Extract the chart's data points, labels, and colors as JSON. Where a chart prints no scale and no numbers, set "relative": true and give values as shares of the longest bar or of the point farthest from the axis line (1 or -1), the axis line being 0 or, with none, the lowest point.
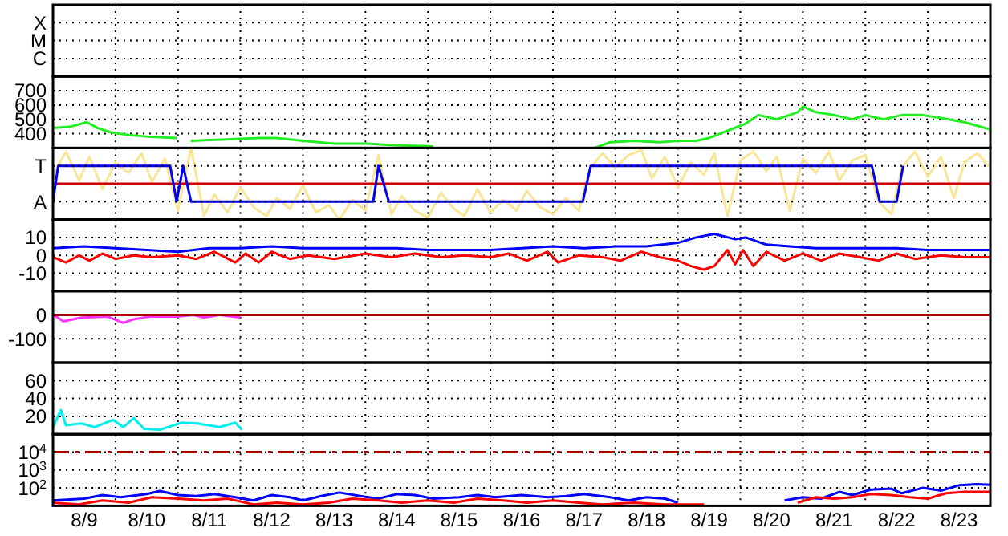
{
  "chart_data": [
    {
      "type": "scatter",
      "orientation": "horizontal",
      "categories": [
        "X",
        "M",
        "C"
      ],
      "xlim": [
        "--08-09",
        "--08-24"
      ],
      "xticks": [
        {
          "value": "--08-10",
          "label": null
        },
        {
          "value": "--08-11",
          "label": null
        },
        {
          "value": "--08-12",
          "label": null
        },
        {
          "value": "--08-13",
          "label": null
        },
        {
          "value": "--08-14",
          "label": null
        },
        {
          "value": "--08-15",
          "label": null
        },
        {
          "value": "--08-16",
          "label": null
        },
        {
          "value": "--08-17",
          "label": null
        },
        {
          "value": "--08-18",
          "label": null
        },
        {
          "value": "--08-19",
          "label": null
        },
        {
          "value": "--08-20",
          "label": null
        },
        {
          "value": "--08-21",
          "label": null
        },
        {
          "value": "--08-22",
          "label": null
        },
        {
          "value": "--08-23",
          "label": null
        }
      ],
      "grid": true,
      "tick_labels": "y"
    },
    {
      "type": "line",
      "xlim": [
        "--08-09",
        "--08-24"
      ],
      "xticks": [
        {
          "value": "--08-10",
          "label": null
        },
        {
          "value": "--08-11",
          "label": null
        },
        {
          "value": "--08-12",
          "label": null
        },
        {
          "value": "--08-13",
          "label": null
        },
        {
          "value": "--08-14",
          "label": null
        },
        {
          "value": "--08-15",
          "label": null
        },
        {
          "value": "--08-16",
          "label": null
        },
        {
          "value": "--08-17",
          "label": null
        },
        {
          "value": "--08-18",
          "label": null
        },
        {
          "value": "--08-19",
          "label": null
        },
        {
          "value": "--08-20",
          "label": null
        },
        {
          "value": "--08-21",
          "label": null
        },
        {
          "value": "--08-22",
          "label": null
        },
        {
          "value": "--08-23",
          "label": null
        }
      ],
      "ylim": [
        300,
        800
      ],
      "yticks": [
        400,
        500,
        600,
        700
      ],
      "grid": true,
      "tick_labels": "y",
      "marker": "none",
      "series": [
        {
          "color": "#22ee22",
          "x": [
            "--08-09T00:00",
            "--08-09T07:00",
            "--08-09T13:00",
            "--08-09T17:00",
            "--08-09T22:00",
            "--08-10T05:00",
            "--08-10T12:00",
            "--08-10T23:30",
            "--08-11T02:00",
            "--08-11T05:00",
            "--08-11T19:00",
            "--08-12T07:00",
            "--08-12T14:00",
            "--08-13T00:00",
            "--08-13T12:00",
            "--08-14T00:00",
            "--08-14T10:00",
            "--08-15T02:00",
            "--08-16T00:00",
            "--08-17T16:00",
            "--08-17T22:00",
            "--08-18T07:00",
            "--08-18T17:00",
            "--08-19T00:00",
            "--08-19T07:00",
            "--08-19T12:00",
            "--08-19T19:00",
            "--08-20T02:00",
            "--08-20T07:00",
            "--08-20T14:00",
            "--08-20T22:00",
            "--08-21T00:00",
            "--08-21T05:00",
            "--08-21T12:00",
            "--08-21T19:00",
            "--08-22T00:00",
            "--08-22T07:00",
            "--08-22T14:00",
            "--08-22T22:00",
            "--08-23T05:00",
            "--08-23T14:00",
            "--08-24T00:00"
          ],
          "values": [
            440,
            450,
            480,
            440,
            410,
            390,
            380,
            370,
            null,
            350,
            360,
            370,
            370,
            350,
            330,
            330,
            320,
            310,
            null,
            300,
            340,
            350,
            340,
            350,
            350,
            370,
            420,
            470,
            530,
            500,
            550,
            590,
            550,
            530,
            500,
            530,
            500,
            530,
            530,
            510,
            480,
            430
          ]
        }
      ]
    },
    {
      "type": "line",
      "relative": true,
      "xlim": [
        "--08-09",
        "--08-24"
      ],
      "xticks": [
        {
          "value": "--08-10",
          "label": null
        },
        {
          "value": "--08-11",
          "label": null
        },
        {
          "value": "--08-12",
          "label": null
        },
        {
          "value": "--08-13",
          "label": null
        },
        {
          "value": "--08-14",
          "label": null
        },
        {
          "value": "--08-15",
          "label": null
        },
        {
          "value": "--08-16",
          "label": null
        },
        {
          "value": "--08-17",
          "label": null
        },
        {
          "value": "--08-18",
          "label": null
        },
        {
          "value": "--08-19",
          "label": null
        },
        {
          "value": "--08-20",
          "label": null
        },
        {
          "value": "--08-21",
          "label": null
        },
        {
          "value": "--08-22",
          "label": null
        },
        {
          "value": "--08-23",
          "label": null
        }
      ],
      "annotations": [
        "T",
        "A"
      ],
      "grid": true,
      "tick_labels": "y",
      "marker": "none",
      "ref_lines": [
        {
          "axis": "y",
          "value": 0,
          "color": "#cc0000"
        }
      ],
      "series": [
        {
          "color": "#f8e596",
          "x": [
            "--08-09T00:00",
            "--08-09T05:00",
            "--08-09T10:00",
            "--08-09T14:00",
            "--08-09T19:00",
            "--08-10T00:00",
            "--08-10T05:00",
            "--08-10T10:00",
            "--08-10T14:00",
            "--08-10T19:00",
            "--08-11T00:00",
            "--08-11T05:00",
            "--08-11T10:00",
            "--08-11T14:00",
            "--08-11T19:00",
            "--08-12T00:00",
            "--08-12T05:00",
            "--08-12T10:00",
            "--08-12T14:00",
            "--08-12T19:00",
            "--08-13T00:00",
            "--08-13T05:00",
            "--08-13T10:00",
            "--08-13T14:00",
            "--08-13T19:00",
            "--08-14T00:00",
            "--08-14T05:00",
            "--08-14T10:00",
            "--08-14T14:00",
            "--08-14T19:00",
            "--08-15T00:00",
            "--08-15T05:00",
            "--08-15T10:00",
            "--08-15T14:00",
            "--08-15T19:00",
            "--08-16T00:00",
            "--08-16T05:00",
            "--08-16T10:00",
            "--08-16T14:00",
            "--08-16T19:00",
            "--08-17T00:00",
            "--08-17T05:00",
            "--08-17T10:00",
            "--08-17T14:00",
            "--08-17T19:00",
            "--08-18T00:00",
            "--08-18T05:00",
            "--08-18T10:00",
            "--08-18T14:00",
            "--08-18T19:00",
            "--08-19T00:00",
            "--08-19T05:00",
            "--08-19T10:00",
            "--08-19T14:00",
            "--08-19T19:00",
            "--08-20T00:00",
            "--08-20T05:00",
            "--08-20T10:00",
            "--08-20T14:00",
            "--08-20T19:00",
            "--08-21T00:00",
            "--08-21T05:00",
            "--08-21T10:00",
            "--08-21T14:00",
            "--08-21T19:00",
            "--08-22T00:00",
            "--08-22T05:00",
            "--08-22T10:00",
            "--08-22T14:00",
            "--08-22T19:00",
            "--08-23T00:00",
            "--08-23T05:00",
            "--08-23T10:00",
            "--08-23T14:00",
            "--08-23T19:00",
            "--08-24T00:00"
          ],
          "values": [
            0.25,
            0.9,
            0.1,
            0.75,
            -0.15,
            0.6,
            0.3,
            0.85,
            0.05,
            0.7,
            -0.75,
            1,
            -0.9,
            -0.3,
            -0.8,
            -0.1,
            -0.65,
            -0.9,
            -0.4,
            -0.7,
            -0.05,
            -0.8,
            -0.6,
            -1,
            -0.45,
            -0.75,
            0.8,
            -0.85,
            -0.35,
            -0.75,
            -0.95,
            -0.25,
            -0.7,
            -0.9,
            -0.15,
            -0.8,
            -0.45,
            -0.75,
            -0.2,
            -0.65,
            -0.85,
            -0.4,
            -0.75,
            0.4,
            0.85,
            0.45,
            0.8,
            0.95,
            0.15,
            0.75,
            -0.1,
            0.6,
            0.25,
            0.85,
            -0.9,
            0.65,
            0.9,
            0.35,
            0.75,
            -0.75,
            0.7,
            0.3,
            0.9,
            0.1,
            0.65,
            0.8,
            -0.5,
            -0.85,
            0.45,
            0.9,
            0.2,
            0.75,
            -0.4,
            0.6,
            0.85,
            0.45
          ]
        },
        {
          "color": "#0000ff",
          "x": [
            "--08-09T00:00",
            "--08-09T02:00",
            "--08-10T21:00",
            "--08-10T23:30",
            "--08-11T02:00",
            "--08-11T05:00",
            "--08-14T03:00",
            "--08-14T05:00",
            "--08-14T09:00",
            "--08-17T11:30",
            "--08-17T14:30",
            "--08-22T02:30",
            "--08-22T05:30",
            "--08-22T12:00",
            "--08-22T14:30"
          ],
          "values": [
            -0.5,
            0.5,
            0.5,
            -0.5,
            0.5,
            -0.5,
            -0.5,
            0.5,
            -0.5,
            -0.5,
            0.5,
            0.5,
            -0.5,
            -0.5,
            0.5
          ]
        }
      ]
    },
    {
      "type": "line",
      "xlim": [
        "--08-09",
        "--08-24"
      ],
      "xticks": [
        {
          "value": "--08-10",
          "label": null
        },
        {
          "value": "--08-11",
          "label": null
        },
        {
          "value": "--08-12",
          "label": null
        },
        {
          "value": "--08-13",
          "label": null
        },
        {
          "value": "--08-14",
          "label": null
        },
        {
          "value": "--08-15",
          "label": null
        },
        {
          "value": "--08-16",
          "label": null
        },
        {
          "value": "--08-17",
          "label": null
        },
        {
          "value": "--08-18",
          "label": null
        },
        {
          "value": "--08-19",
          "label": null
        },
        {
          "value": "--08-20",
          "label": null
        },
        {
          "value": "--08-21",
          "label": null
        },
        {
          "value": "--08-22",
          "label": null
        },
        {
          "value": "--08-23",
          "label": null
        }
      ],
      "ylim": [
        -20,
        20
      ],
      "yticks": [
        -10,
        0,
        10
      ],
      "grid": true,
      "tick_labels": "y",
      "marker": "none",
      "series": [
        {
          "color": "#0000ff",
          "x": [
            "--08-09T00:00",
            "--08-09T12:00",
            "--08-10T00:00",
            "--08-10T12:00",
            "--08-11T00:00",
            "--08-11T12:00",
            "--08-12T00:00",
            "--08-12T12:00",
            "--08-13T00:00",
            "--08-13T12:00",
            "--08-14T00:00",
            "--08-14T12:00",
            "--08-15T00:00",
            "--08-15T12:00",
            "--08-16T00:00",
            "--08-16T12:00",
            "--08-17T00:00",
            "--08-17T12:00",
            "--08-18T00:00",
            "--08-18T12:00",
            "--08-19T00:00",
            "--08-19T07:00",
            "--08-19T14:00",
            "--08-19T22:00",
            "--08-20T02:00",
            "--08-20T10:00",
            "--08-20T19:00",
            "--08-21T05:00",
            "--08-21T14:00",
            "--08-22T00:00",
            "--08-22T12:00",
            "--08-23T00:00",
            "--08-23T12:00",
            "--08-24T00:00"
          ],
          "values": [
            4,
            5,
            4,
            3,
            2,
            4,
            4,
            5,
            4,
            4,
            4,
            4,
            3,
            3,
            3,
            4,
            5,
            4,
            5,
            5,
            7,
            10,
            12,
            9,
            10,
            6,
            5,
            4,
            4,
            4,
            4,
            3,
            3,
            3
          ]
        },
        {
          "color": "#ff0000",
          "x": [
            "--08-09T00:00",
            "--08-09T05:00",
            "--08-09T10:00",
            "--08-09T14:00",
            "--08-09T19:00",
            "--08-10T00:00",
            "--08-10T07:00",
            "--08-10T14:00",
            "--08-11T00:00",
            "--08-11T07:00",
            "--08-11T14:00",
            "--08-11T22:00",
            "--08-12T02:00",
            "--08-12T07:00",
            "--08-12T12:00",
            "--08-12T19:00",
            "--08-13T02:00",
            "--08-13T12:00",
            "--08-14T00:00",
            "--08-14T10:00",
            "--08-14T19:00",
            "--08-15T05:00",
            "--08-15T14:00",
            "--08-16T00:00",
            "--08-16T07:00",
            "--08-16T14:00",
            "--08-16T22:00",
            "--08-17T02:00",
            "--08-17T10:00",
            "--08-17T19:00",
            "--08-18T02:00",
            "--08-18T10:00",
            "--08-18T17:00",
            "--08-19T00:00",
            "--08-19T05:00",
            "--08-19T10:00",
            "--08-19T14:00",
            "--08-19T19:00",
            "--08-19T22:00",
            "--08-20T01:00",
            "--08-20T05:00",
            "--08-20T10:00",
            "--08-20T17:00",
            "--08-21T00:00",
            "--08-21T07:00",
            "--08-21T14:00",
            "--08-21T22:00",
            "--08-22T05:00",
            "--08-22T12:00",
            "--08-22T19:00",
            "--08-23T05:00",
            "--08-23T14:00",
            "--08-24T00:00"
          ],
          "values": [
            -1,
            -4,
            0,
            -3,
            1,
            -2,
            0,
            -1,
            0,
            -2,
            2,
            -4,
            1,
            -4,
            2,
            -2,
            0,
            -2,
            1,
            -1,
            1,
            -1,
            0,
            -1,
            1,
            -3,
            2,
            -4,
            0,
            -1,
            -3,
            2,
            -1,
            -3,
            -6,
            -8,
            -6,
            3,
            -5,
            3,
            -6,
            2,
            -3,
            1,
            -3,
            1,
            -1,
            -3,
            1,
            -2,
            0,
            -1,
            -1
          ]
        }
      ]
    },
    {
      "type": "line",
      "xlim": [
        "--08-09",
        "--08-24"
      ],
      "xticks": [
        {
          "value": "--08-10",
          "label": null
        },
        {
          "value": "--08-11",
          "label": null
        },
        {
          "value": "--08-12",
          "label": null
        },
        {
          "value": "--08-13",
          "label": null
        },
        {
          "value": "--08-14",
          "label": null
        },
        {
          "value": "--08-15",
          "label": null
        },
        {
          "value": "--08-16",
          "label": null
        },
        {
          "value": "--08-17",
          "label": null
        },
        {
          "value": "--08-18",
          "label": null
        },
        {
          "value": "--08-19",
          "label": null
        },
        {
          "value": "--08-20",
          "label": null
        },
        {
          "value": "--08-21",
          "label": null
        },
        {
          "value": "--08-22",
          "label": null
        },
        {
          "value": "--08-23",
          "label": null
        }
      ],
      "ylim": [
        -200,
        100
      ],
      "yticks": [
        -100,
        0
      ],
      "grid": true,
      "tick_labels": "y",
      "marker": "none",
      "ref_lines": [
        {
          "axis": "y",
          "value": 0,
          "color": "#aa0000"
        }
      ],
      "series": [
        {
          "color": "#ff33ff",
          "x": [
            "--08-09T00:00",
            "--08-09T04:00",
            "--08-09T11:00",
            "--08-09T21:00",
            "--08-10T03:00",
            "--08-10T07:00",
            "--08-10T13:00",
            "--08-10T23:30",
            "--08-11T06:00",
            "--08-11T10:00",
            "--08-11T16:00",
            "--08-12T00:00"
          ],
          "values": [
            3,
            -27,
            -11,
            -7,
            -33,
            -18,
            -7,
            -7,
            0,
            -11,
            0,
            -11
          ]
        }
      ]
    },
    {
      "type": "line",
      "xlim": [
        "--08-09",
        "--08-24"
      ],
      "xticks": [
        {
          "value": "--08-10",
          "label": null
        },
        {
          "value": "--08-11",
          "label": null
        },
        {
          "value": "--08-12",
          "label": null
        },
        {
          "value": "--08-13",
          "label": null
        },
        {
          "value": "--08-14",
          "label": null
        },
        {
          "value": "--08-15",
          "label": null
        },
        {
          "value": "--08-16",
          "label": null
        },
        {
          "value": "--08-17",
          "label": null
        },
        {
          "value": "--08-18",
          "label": null
        },
        {
          "value": "--08-19",
          "label": null
        },
        {
          "value": "--08-20",
          "label": null
        },
        {
          "value": "--08-21",
          "label": null
        },
        {
          "value": "--08-22",
          "label": null
        },
        {
          "value": "--08-23",
          "label": null
        }
      ],
      "ylim": [
        0,
        80
      ],
      "yticks": [
        20,
        40,
        60
      ],
      "grid": true,
      "tick_labels": "y",
      "marker": "none",
      "series": [
        {
          "color": "#00eeee",
          "x": [
            "--08-09T00:00",
            "--08-09T03:00",
            "--08-09T05:00",
            "--08-09T11:00",
            "--08-09T16:00",
            "--08-09T23:00",
            "--08-10T03:00",
            "--08-10T07:00",
            "--08-10T11:00",
            "--08-10T17:00",
            "--08-11T01:30",
            "--08-11T07:30",
            "--08-11T16:00",
            "--08-11T22:00",
            "--08-12T00:30"
          ],
          "values": [
            8,
            27,
            10,
            12,
            8,
            16,
            8,
            18,
            6,
            5,
            13,
            12,
            8,
            13,
            5
          ]
        }
      ]
    },
    {
      "type": "line",
      "log": true,
      "xlim": [
        "--08-09",
        "--08-24"
      ],
      "xticks": [
        {
          "value": "--08-09T12:00",
          "label": "8/9"
        },
        {
          "value": "--08-10",
          "label": null
        },
        {
          "value": "--08-10T12:00",
          "label": "8/10"
        },
        {
          "value": "--08-11",
          "label": null
        },
        {
          "value": "--08-11T12:00",
          "label": "8/11"
        },
        {
          "value": "--08-12",
          "label": null
        },
        {
          "value": "--08-12T12:00",
          "label": "8/12"
        },
        {
          "value": "--08-13",
          "label": null
        },
        {
          "value": "--08-13T12:00",
          "label": "8/13"
        },
        {
          "value": "--08-14",
          "label": null
        },
        {
          "value": "--08-14T12:00",
          "label": "8/14"
        },
        {
          "value": "--08-15",
          "label": null
        },
        {
          "value": "--08-15T12:00",
          "label": "8/15"
        },
        {
          "value": "--08-16",
          "label": null
        },
        {
          "value": "--08-16T12:00",
          "label": "8/16"
        },
        {
          "value": "--08-17",
          "label": null
        },
        {
          "value": "--08-17T12:00",
          "label": "8/17"
        },
        {
          "value": "--08-18",
          "label": null
        },
        {
          "value": "--08-18T12:00",
          "label": "8/18"
        },
        {
          "value": "--08-19",
          "label": null
        },
        {
          "value": "--08-19T12:00",
          "label": "8/19"
        },
        {
          "value": "--08-20",
          "label": null
        },
        {
          "value": "--08-20T12:00",
          "label": "8/20"
        },
        {
          "value": "--08-21",
          "label": null
        },
        {
          "value": "--08-21T12:00",
          "label": "8/21"
        },
        {
          "value": "--08-22",
          "label": null
        },
        {
          "value": "--08-22T12:00",
          "label": "8/22"
        },
        {
          "value": "--08-23",
          "label": null
        },
        {
          "value": "--08-23T12:00",
          "label": "8/23"
        }
      ],
      "ylim": [
        10,
        100000
      ],
      "yticks": [
        {
          "value": 100,
          "label": "10$^{2}$"
        },
        {
          "value": 1000,
          "label": "10$^{3}$"
        },
        {
          "value": 10000,
          "label": "10$^{4}$"
        }
      ],
      "grid": true,
      "marker": "none",
      "ref_lines": [
        {
          "axis": "y",
          "value": 10000,
          "color": "#aa0000",
          "line_style": "dashed"
        }
      ],
      "series": [
        {
          "color": "#0000ff",
          "x": [
            "--08-09T00:00",
            "--08-09T12:00",
            "--08-09T19:00",
            "--08-10T02:00",
            "--08-10T12:00",
            "--08-10T17:00",
            "--08-11T00:00",
            "--08-11T07:00",
            "--08-11T14:00",
            "--08-11T22:00",
            "--08-12T05:00",
            "--08-12T12:00",
            "--08-12T19:00",
            "--08-13T00:00",
            "--08-13T07:00",
            "--08-13T14:00",
            "--08-13T22:00",
            "--08-14T05:00",
            "--08-14T12:00",
            "--08-14T19:00",
            "--08-15T02:00",
            "--08-15T12:00",
            "--08-15T19:00",
            "--08-16T02:00",
            "--08-16T12:00",
            "--08-16T22:00",
            "--08-17T05:00",
            "--08-17T12:00",
            "--08-17T22:00",
            "--08-18T05:00",
            "--08-18T12:00",
            "--08-18T19:00",
            "--08-19T00:00",
            "--08-19T19:00",
            "--08-20T17:00",
            "--08-21T00:00",
            "--08-21T07:00",
            "--08-21T14:00",
            "--08-21T19:00",
            "--08-22T02:00",
            "--08-22T10:00",
            "--08-22T14:00",
            "--08-22T22:00",
            "--08-23T05:00",
            "--08-23T12:00",
            "--08-23T19:00",
            "--08-24T00:00"
          ],
          "values": [
            20,
            25,
            40,
            30,
            45,
            67,
            40,
            35,
            45,
            30,
            20,
            40,
            30,
            20,
            35,
            55,
            35,
            25,
            45,
            40,
            25,
            30,
            40,
            30,
            40,
            30,
            35,
            45,
            30,
            20,
            30,
            25,
            15,
            null,
            20,
            30,
            25,
            60,
            40,
            80,
            90,
            50,
            100,
            70,
            140,
            160,
            150
          ]
        },
        {
          "color": "#ff0000",
          "x": [
            "--08-09T00:00",
            "--08-09T10:00",
            "--08-09T19:00",
            "--08-10T05:00",
            "--08-10T14:00",
            "--08-11T00:00",
            "--08-11T10:00",
            "--08-11T19:00",
            "--08-12T05:00",
            "--08-12T14:00",
            "--08-13T00:00",
            "--08-13T10:00",
            "--08-13T19:00",
            "--08-14T05:00",
            "--08-14T14:00",
            "--08-15T00:00",
            "--08-15T10:00",
            "--08-15T19:00",
            "--08-16T05:00",
            "--08-16T14:00",
            "--08-17T00:00",
            "--08-17T10:00",
            "--08-17T19:00",
            "--08-18T07:00",
            "--08-18T19:00",
            "--08-19T10:00",
            "--08-20T02:00",
            "--08-20T22:00",
            "--08-21T05:00",
            "--08-21T12:00",
            "--08-21T19:00",
            "--08-22T02:00",
            "--08-22T10:00",
            "--08-22T17:00",
            "--08-23T00:00",
            "--08-23T07:00",
            "--08-23T14:00",
            "--08-24T00:00"
          ],
          "values": [
            15,
            12,
            20,
            15,
            30,
            25,
            20,
            25,
            12,
            15,
            12,
            15,
            25,
            20,
            15,
            20,
            15,
            25,
            20,
            15,
            20,
            15,
            12,
            15,
            12,
            12,
            null,
            15,
            30,
            25,
            30,
            45,
            40,
            30,
            25,
            50,
            60,
            60
          ]
        }
      ]
    }
  ]
}
